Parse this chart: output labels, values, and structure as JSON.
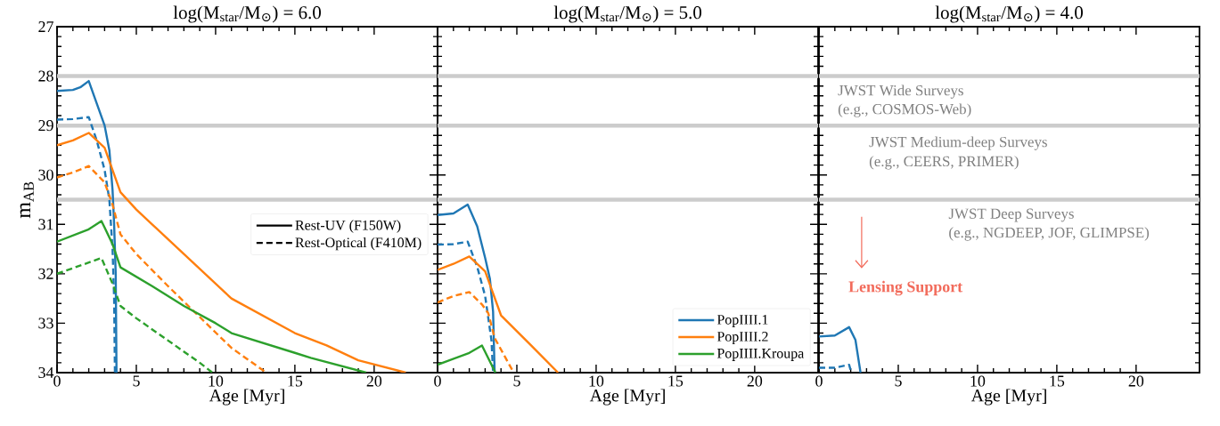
{
  "chart_data": [
    {
      "type": "line",
      "title": "log(M$_{star}$/M$_{⊙}$) = 6.0",
      "xlabel": "Age [Myr]",
      "ylabel": "m$_{AB}$",
      "xlim": [
        0,
        24
      ],
      "ylim": [
        34,
        27
      ],
      "xticks": [
        0,
        5,
        10,
        15,
        20
      ],
      "yticks": [
        27,
        28,
        29,
        30,
        31,
        32,
        33,
        34
      ],
      "legend": "right",
      "marker": "none",
      "ref_lines": [
        {
          "axis": "y",
          "value": 28,
          "color": "#cccccc"
        },
        {
          "axis": "y",
          "value": 29,
          "color": "#cccccc"
        },
        {
          "axis": "y",
          "value": 30.5,
          "color": "#cccccc"
        }
      ],
      "series": [
        {
          "color": "#1f77b4",
          "line_style": "solid",
          "x": [
            0,
            1,
            1.5,
            2,
            2.5,
            3,
            3.3,
            3.5,
            3.6,
            3.7,
            3.75
          ],
          "values": [
            28.3,
            28.28,
            28.22,
            28.1,
            28.55,
            29.0,
            29.5,
            30.3,
            31.0,
            32.0,
            34
          ]
        },
        {
          "color": "#1f77b4",
          "line_style": "dashed",
          "x": [
            0,
            1,
            2,
            2.5,
            3,
            3.3,
            3.5,
            3.6,
            3.65
          ],
          "values": [
            28.88,
            28.87,
            28.83,
            29.3,
            29.9,
            30.5,
            31.5,
            32.5,
            34
          ]
        },
        {
          "color": "#ff7f0e",
          "line_style": "solid",
          "x": [
            0,
            1,
            2,
            3,
            4,
            5,
            6,
            8,
            11,
            13,
            15,
            17,
            19,
            22
          ],
          "values": [
            29.4,
            29.3,
            29.15,
            29.45,
            30.35,
            30.7,
            31.0,
            31.6,
            32.5,
            32.85,
            33.2,
            33.45,
            33.75,
            34
          ]
        },
        {
          "color": "#ff7f0e",
          "line_style": "dashed",
          "x": [
            0,
            1,
            2,
            3,
            3.5,
            4,
            5,
            7,
            9.4,
            11,
            13.2
          ],
          "values": [
            30.05,
            29.95,
            29.82,
            30.15,
            30.6,
            31.2,
            31.6,
            32.25,
            33.0,
            33.5,
            34
          ]
        },
        {
          "color": "#2ca02c",
          "line_style": "solid",
          "x": [
            0,
            2,
            2.8,
            3.5,
            4,
            6,
            8,
            10,
            11,
            13,
            15,
            16,
            19.5
          ],
          "values": [
            31.35,
            31.1,
            30.93,
            31.4,
            31.87,
            32.25,
            32.65,
            33.0,
            33.2,
            33.4,
            33.6,
            33.7,
            34
          ]
        },
        {
          "color": "#2ca02c",
          "line_style": "dashed",
          "x": [
            0,
            2.8,
            3.5,
            4,
            5,
            7,
            9,
            9.8
          ],
          "values": [
            32.0,
            31.68,
            32.2,
            32.65,
            32.9,
            33.35,
            33.8,
            34
          ]
        },
        {
          "name": "Rest-UV (F150W)",
          "color": "#000000",
          "line_style": "solid"
        },
        {
          "name": "Rest-Optical (F410M)",
          "color": "#000000",
          "line_style": "dashed"
        }
      ]
    },
    {
      "type": "line",
      "title": "log(M$_{star}$/M$_{⊙}$) = 5.0",
      "xlabel": "Age [Myr]",
      "xlim": [
        0,
        24
      ],
      "ylim": [
        34,
        27
      ],
      "xticks": [
        0,
        5,
        10,
        15,
        20
      ],
      "yticks": [
        27,
        28,
        29,
        30,
        31,
        32,
        33,
        34
      ],
      "tick_labels": "x",
      "legend": "bottom right",
      "marker": "none",
      "ref_lines": [
        {
          "axis": "y",
          "value": 28,
          "color": "#cccccc"
        },
        {
          "axis": "y",
          "value": 29,
          "color": "#cccccc"
        },
        {
          "axis": "y",
          "value": 30.5,
          "color": "#cccccc"
        }
      ],
      "series": [
        {
          "name": "PopIIII.1",
          "color": "#1f77b4",
          "line_style": "solid",
          "x": [
            0,
            1,
            1.9,
            2.5,
            3,
            3.3,
            3.5,
            3.55,
            3.6
          ],
          "values": [
            30.81,
            30.78,
            30.6,
            31.04,
            31.68,
            32.1,
            32.76,
            33.4,
            34
          ]
        },
        {
          "color": "#1f77b4",
          "line_style": "dashed",
          "x": [
            0,
            1,
            1.9,
            2.5,
            3,
            3.4,
            3.5
          ],
          "values": [
            31.41,
            31.4,
            31.35,
            31.86,
            32.45,
            33.35,
            34
          ]
        },
        {
          "name": "PopIIII.2",
          "color": "#ff7f0e",
          "line_style": "solid",
          "x": [
            0,
            1,
            2,
            3,
            4,
            5.9,
            7.6
          ],
          "values": [
            31.92,
            31.8,
            31.65,
            31.95,
            32.84,
            33.45,
            34
          ]
        },
        {
          "color": "#ff7f0e",
          "line_style": "dashed",
          "x": [
            0,
            1,
            2,
            2.8,
            3.2,
            3.6,
            4.8
          ],
          "values": [
            32.58,
            32.45,
            32.37,
            32.62,
            32.8,
            33.3,
            34
          ]
        },
        {
          "name": "PopIIII.Kroupa",
          "color": "#2ca02c",
          "line_style": "solid",
          "x": [
            0,
            2,
            2.8,
            3.65
          ],
          "values": [
            33.84,
            33.6,
            33.45,
            34
          ]
        }
      ]
    },
    {
      "type": "line",
      "title": "log(M$_{star}$/M$_{⊙}$) = 4.0",
      "xlabel": "Age [Myr]",
      "xlim": [
        0,
        24
      ],
      "ylim": [
        34,
        27
      ],
      "xticks": [
        0,
        5,
        10,
        15,
        20
      ],
      "yticks": [
        27,
        28,
        29,
        30,
        31,
        32,
        33,
        34
      ],
      "tick_labels": "x",
      "marker": "none",
      "ref_lines": [
        {
          "axis": "y",
          "value": 28,
          "color": "#cccccc"
        },
        {
          "axis": "y",
          "value": 29,
          "color": "#cccccc"
        },
        {
          "axis": "y",
          "value": 30.5,
          "color": "#cccccc"
        }
      ],
      "annotations": [
        "JWST Wide Surveys",
        "(e.g., COSMOS-Web)",
        "JWST Medium-deep Surveys",
        "(e.g., CEERS, PRIMER)",
        "JWST Deep Surveys",
        "(e.g., NGDEEP, JOF, GLIMPSE)",
        "Lensing Support"
      ],
      "series": [
        {
          "color": "#1f77b4",
          "line_style": "solid",
          "x": [
            0,
            1,
            1.9,
            2.3,
            2.62
          ],
          "values": [
            33.27,
            33.25,
            33.08,
            33.34,
            34
          ]
        },
        {
          "color": "#1f77b4",
          "line_style": "dashed",
          "x": [
            0,
            1,
            1.9,
            2.04
          ],
          "values": [
            33.9,
            33.9,
            33.84,
            34
          ]
        }
      ]
    }
  ]
}
